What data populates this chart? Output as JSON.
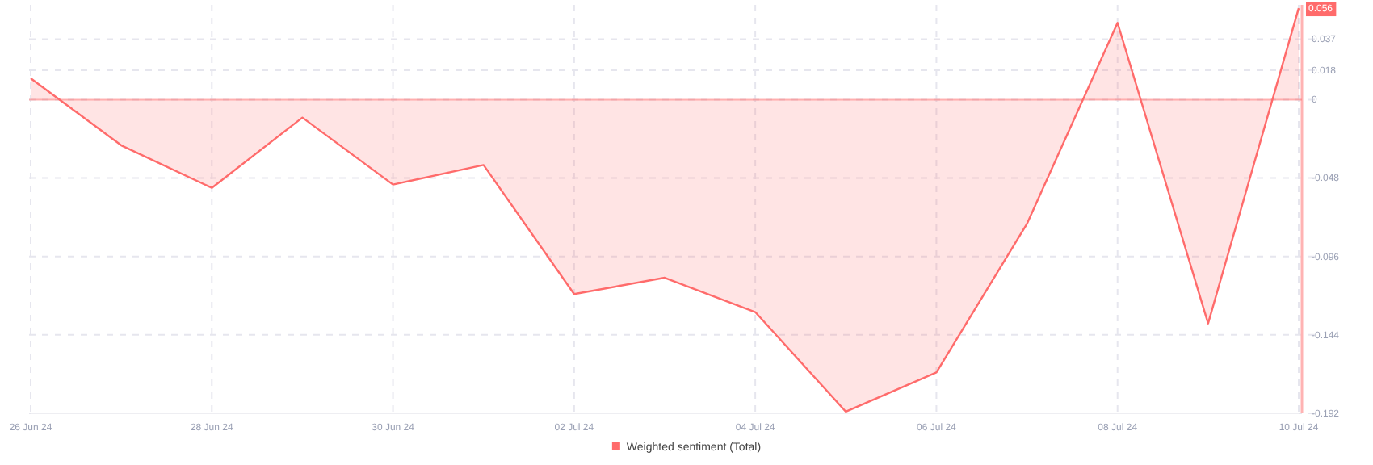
{
  "chart_data": {
    "type": "area",
    "x": [
      "--06-26",
      "--06-27",
      "--06-28",
      "--06-29",
      "--06-30",
      "--07-01",
      "--07-02",
      "--07-03",
      "--07-04",
      "--07-05",
      "--07-06",
      "--07-07",
      "--07-08",
      "--07-09",
      "--07-10"
    ],
    "series": [
      {
        "name": "Weighted sentiment (Total)",
        "color": "#ff6b6b",
        "values": [
          0.013,
          -0.028,
          -0.054,
          -0.011,
          -0.052,
          -0.04,
          -0.119,
          -0.109,
          -0.13,
          -0.191,
          -0.167,
          -0.076,
          0.047,
          -0.137,
          0.056
        ]
      }
    ],
    "xlim": [
      "--06-26",
      "--07-10"
    ],
    "xticks": [
      {
        "value": "--06-26",
        "label": "26 Jun 24"
      },
      {
        "value": "--06-28",
        "label": "28 Jun 24"
      },
      {
        "value": "--06-30",
        "label": "30 Jun 24"
      },
      {
        "value": "--07-02",
        "label": "02 Jul 24"
      },
      {
        "value": "--07-04",
        "label": "04 Jul 24"
      },
      {
        "value": "--07-06",
        "label": "06 Jul 24"
      },
      {
        "value": "--07-08",
        "label": "08 Jul 24"
      },
      {
        "value": "--07-10",
        "label": "10 Jul 24"
      }
    ],
    "ylim": [
      -0.192,
      0.058
    ],
    "yticks": [
      -0.192,
      -0.144,
      -0.096,
      -0.048,
      0,
      0.018,
      0.037
    ],
    "annotations": [
      {
        "text": "0.056",
        "x": "--07-10",
        "y": 0.056
      }
    ],
    "ref_lines": [
      {
        "axis": "y",
        "value": 0,
        "color": "#ff6b6b"
      }
    ],
    "grid": true,
    "legend": "bottom",
    "marker": "none"
  }
}
